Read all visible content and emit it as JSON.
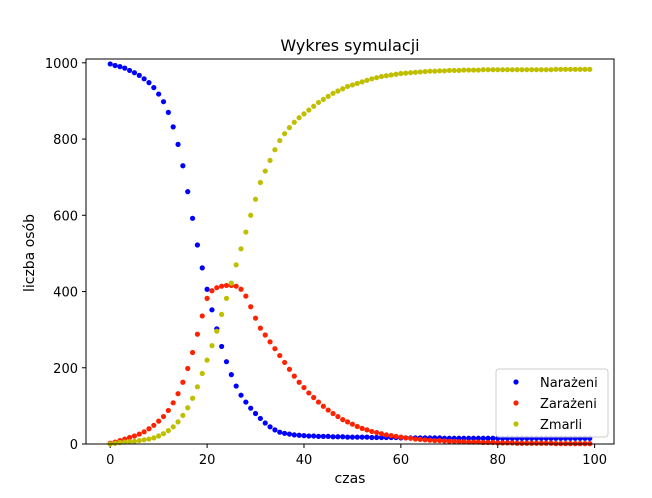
{
  "chart_data": {
    "type": "scatter",
    "title": "Wykres symulacji",
    "xlabel": "czas",
    "ylabel": "liczba osób",
    "xlim": [
      -5,
      104
    ],
    "ylim": [
      0,
      1010
    ],
    "xticks": [
      0,
      20,
      40,
      60,
      80,
      100
    ],
    "yticks": [
      0,
      200,
      400,
      600,
      800,
      1000
    ],
    "grid": false,
    "legend_position": "bottom-right",
    "x": [
      0,
      1,
      2,
      3,
      4,
      5,
      6,
      7,
      8,
      9,
      10,
      11,
      12,
      13,
      14,
      15,
      16,
      17,
      18,
      19,
      20,
      21,
      22,
      23,
      24,
      25,
      26,
      27,
      28,
      29,
      30,
      31,
      32,
      33,
      34,
      35,
      36,
      37,
      38,
      39,
      40,
      41,
      42,
      43,
      44,
      45,
      46,
      47,
      48,
      49,
      50,
      51,
      52,
      53,
      54,
      55,
      56,
      57,
      58,
      59,
      60,
      61,
      62,
      63,
      64,
      65,
      66,
      67,
      68,
      69,
      70,
      71,
      72,
      73,
      74,
      75,
      76,
      77,
      78,
      79,
      80,
      81,
      82,
      83,
      84,
      85,
      86,
      87,
      88,
      89,
      90,
      91,
      92,
      93,
      94,
      95,
      96,
      97,
      98,
      99
    ],
    "series": [
      {
        "name": "Narażeni",
        "color": "#0000ff",
        "values": [
          997,
          993,
          990,
          986,
          980,
          974,
          967,
          958,
          948,
          935,
          918,
          898,
          870,
          832,
          786,
          730,
          662,
          592,
          522,
          462,
          406,
          352,
          302,
          256,
          216,
          182,
          152,
          128,
          110,
          94,
          80,
          67,
          55,
          45,
          37,
          31,
          28,
          26,
          24,
          23,
          22,
          21,
          21,
          20,
          20,
          20,
          19,
          19,
          19,
          18,
          18,
          18,
          18,
          18,
          17,
          17,
          17,
          17,
          17,
          17,
          16,
          16,
          16,
          16,
          16,
          16,
          16,
          16,
          16,
          15,
          15,
          15,
          15,
          15,
          15,
          15,
          15,
          15,
          15,
          15,
          15,
          15,
          15,
          15,
          15,
          15,
          15,
          15,
          15,
          15,
          15,
          15,
          15,
          15,
          15,
          15,
          15,
          15,
          15,
          15
        ]
      },
      {
        "name": "Zarażeni",
        "color": "#ff2200",
        "values": [
          2,
          5,
          9,
          13,
          17,
          21,
          26,
          32,
          40,
          49,
          60,
          72,
          88,
          108,
          132,
          162,
          198,
          240,
          288,
          336,
          382,
          402,
          410,
          414,
          416,
          416,
          414,
          406,
          388,
          360,
          330,
          304,
          286,
          268,
          250,
          232,
          214,
          196,
          178,
          162,
          148,
          134,
          122,
          110,
          99,
          89,
          80,
          72,
          64,
          58,
          52,
          46,
          41,
          37,
          33,
          30,
          27,
          24,
          22,
          20,
          18,
          16,
          15,
          13,
          12,
          11,
          10,
          9,
          9,
          8,
          7,
          7,
          6,
          6,
          5,
          5,
          5,
          4,
          4,
          4,
          3,
          3,
          3,
          3,
          2,
          2,
          2,
          2,
          2,
          2,
          2,
          2,
          1,
          1,
          1,
          1,
          1,
          1,
          1,
          1
        ]
      },
      {
        "name": "Zmarli",
        "color": "#bfbf00",
        "values": [
          0,
          2,
          4,
          5,
          6,
          7,
          9,
          11,
          13,
          16,
          21,
          27,
          35,
          45,
          58,
          75,
          95,
          120,
          150,
          185,
          220,
          258,
          296,
          340,
          382,
          422,
          470,
          512,
          556,
          600,
          642,
          686,
          716,
          744,
          772,
          796,
          814,
          830,
          844,
          856,
          866,
          876,
          886,
          896,
          904,
          912,
          920,
          926,
          932,
          938,
          942,
          946,
          950,
          954,
          958,
          961,
          964,
          966,
          968,
          970,
          972,
          973,
          974,
          975,
          976,
          977,
          978,
          978,
          979,
          979,
          980,
          980,
          980,
          981,
          981,
          981,
          981,
          982,
          982,
          982,
          982,
          982,
          982,
          982,
          982,
          982,
          982,
          982,
          982,
          982,
          982,
          982,
          983,
          983,
          983,
          983,
          983,
          983,
          983,
          983
        ]
      }
    ]
  }
}
